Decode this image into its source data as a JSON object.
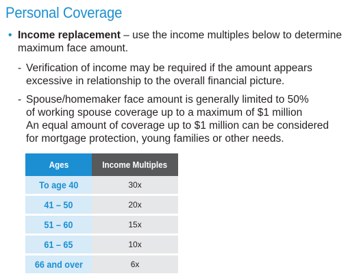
{
  "title": "Personal Coverage",
  "bullet": {
    "label": "Income replacement",
    "text_line1": " – use the income multiples below to determine",
    "text_line2": "maximum face amount."
  },
  "sub_items": [
    {
      "dash": "-",
      "lines": [
        "Verification of income may be required if the amount appears",
        "excessive in relationship to the overall financial picture."
      ]
    },
    {
      "dash": "-",
      "lines": [
        "Spouse/homemaker face amount is generally limited to 50%",
        "of working spouse coverage up to a maximum of $1 million",
        "An equal amount of coverage up to $1 million can be considered",
        "for mortgage protection, young families or other needs."
      ]
    }
  ],
  "table": {
    "headers": [
      "Ages",
      "Income Multiples"
    ],
    "rows": [
      {
        "age": "To age 40",
        "multiple": "30x"
      },
      {
        "age": "41 – 50",
        "multiple": "20x"
      },
      {
        "age": "51 – 60",
        "multiple": "15x"
      },
      {
        "age": "61 – 65",
        "multiple": "10x"
      },
      {
        "age": "66 and over",
        "multiple": "6x"
      }
    ]
  },
  "colors": {
    "accent_blue": "#1b8fd1",
    "header_gray": "#58595b",
    "age_cell_bg": "#d6eaf8",
    "value_cell_bg": "#e6e7e8"
  }
}
